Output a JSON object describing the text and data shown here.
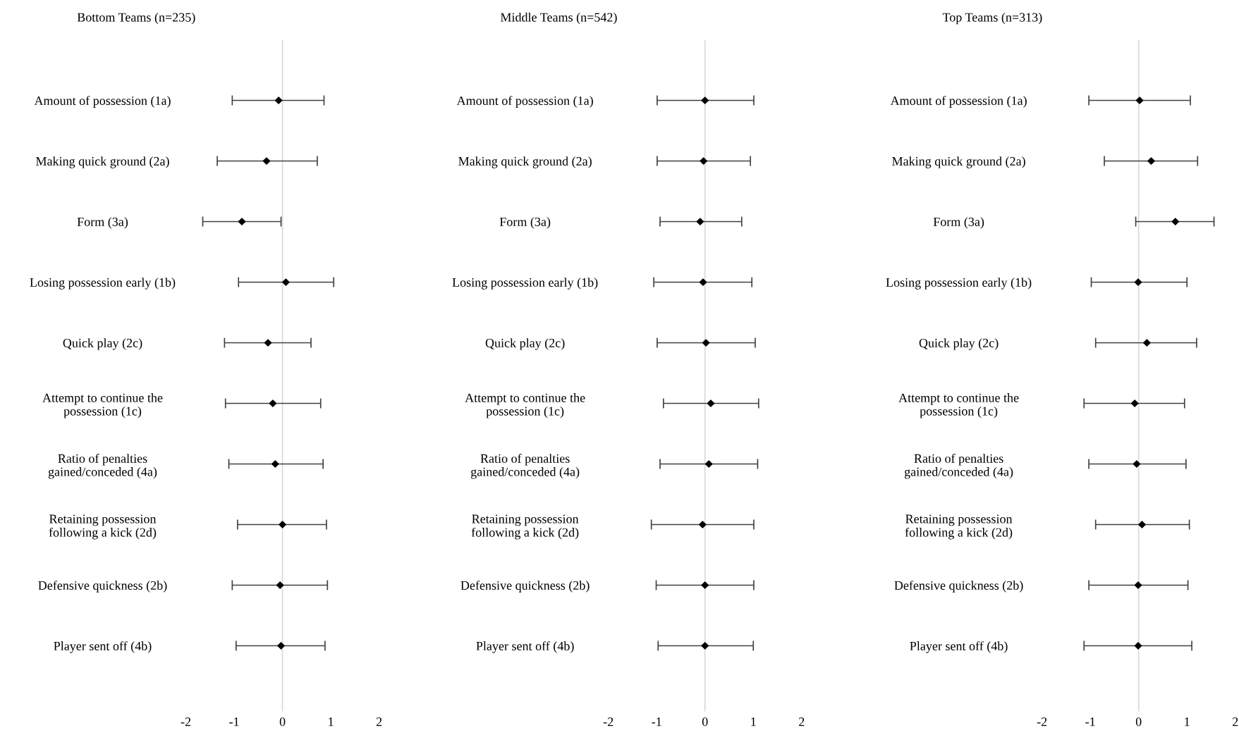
{
  "chart_data": [
    {
      "type": "scatter",
      "title": "Bottom Teams (n=235)",
      "orientation": "horizontal",
      "marker": "diamond",
      "categories": [
        "Amount of possession (1a)",
        "Making quick ground (2a)",
        "Form (3a)",
        "Losing possession early (1b)",
        "Quick play (2c)",
        "Attempt to continue the\npossession (1c)",
        "Ratio of penalties\ngained/conceded (4a)",
        "Retaining possession\nfollowing a kick (2d)",
        "Defensive quickness (2b)",
        "Player sent off (4b)"
      ],
      "series": [
        {
          "color": "#000000",
          "values": [
            -0.08,
            -0.33,
            -0.84,
            0.07,
            -0.3,
            -0.2,
            -0.15,
            0.0,
            -0.05,
            -0.03
          ],
          "errors": [
            [
              -1.04,
              0.86
            ],
            [
              -1.35,
              0.72
            ],
            [
              -1.65,
              -0.03
            ],
            [
              -0.91,
              1.06
            ],
            [
              -1.2,
              0.59
            ],
            [
              -1.18,
              0.79
            ],
            [
              -1.11,
              0.84
            ],
            [
              -0.93,
              0.91
            ],
            [
              -1.04,
              0.93
            ],
            [
              -0.96,
              0.88
            ]
          ]
        }
      ],
      "xlim": [
        -2,
        2
      ],
      "xticks": [
        -2,
        -1,
        0,
        1,
        2
      ],
      "ref_lines": [
        {
          "axis": "x",
          "value": 0,
          "color": "#d9d9d9"
        }
      ],
      "grid": false,
      "legend": false
    },
    {
      "type": "scatter",
      "title": "Middle Teams (n=542)",
      "orientation": "horizontal",
      "marker": "diamond",
      "categories": [
        "Amount of possession (1a)",
        "Making quick ground (2a)",
        "Form (3a)",
        "Losing possession early (1b)",
        "Quick play (2c)",
        "Attempt to continue the\npossession (1c)",
        "Ratio of penalties\ngained/conceded (4a)",
        "Retaining possession\nfollowing a kick (2d)",
        "Defensive quickness (2b)",
        "Player sent off (4b)"
      ],
      "series": [
        {
          "color": "#000000",
          "values": [
            0.0,
            -0.03,
            -0.1,
            -0.04,
            0.02,
            0.12,
            0.08,
            -0.05,
            0.0,
            0.0
          ],
          "errors": [
            [
              -0.99,
              1.01
            ],
            [
              -0.99,
              0.94
            ],
            [
              -0.93,
              0.76
            ],
            [
              -1.06,
              0.97
            ],
            [
              -0.99,
              1.04
            ],
            [
              -0.86,
              1.11
            ],
            [
              -0.93,
              1.09
            ],
            [
              -1.11,
              1.01
            ],
            [
              -1.01,
              1.01
            ],
            [
              -0.97,
              1.0
            ]
          ]
        }
      ],
      "xlim": [
        -2,
        2
      ],
      "xticks": [
        -2,
        -1,
        0,
        1,
        2
      ],
      "ref_lines": [
        {
          "axis": "x",
          "value": 0,
          "color": "#d9d9d9"
        }
      ],
      "grid": false,
      "legend": false
    },
    {
      "type": "scatter",
      "title": "Top Teams (n=313)",
      "orientation": "horizontal",
      "marker": "diamond",
      "categories": [
        "Amount of possession (1a)",
        "Making quick ground (2a)",
        "Form (3a)",
        "Losing possession early (1b)",
        "Quick play (2c)",
        "Attempt to continue the\npossession (1c)",
        "Ratio of penalties\ngained/conceded (4a)",
        "Retaining possession\nfollowing a kick (2d)",
        "Defensive quickness (2b)",
        "Player sent off (4b)"
      ],
      "series": [
        {
          "color": "#000000",
          "values": [
            0.02,
            0.26,
            0.76,
            -0.01,
            0.17,
            -0.08,
            -0.04,
            0.07,
            -0.01,
            -0.01
          ],
          "errors": [
            [
              -1.03,
              1.07
            ],
            [
              -0.71,
              1.22
            ],
            [
              -0.06,
              1.56
            ],
            [
              -0.98,
              1.0
            ],
            [
              -0.89,
              1.2
            ],
            [
              -1.13,
              0.95
            ],
            [
              -1.03,
              0.98
            ],
            [
              -0.89,
              1.05
            ],
            [
              -1.03,
              1.02
            ],
            [
              -1.13,
              1.1
            ]
          ]
        }
      ],
      "xlim": [
        -2,
        2
      ],
      "xticks": [
        -2,
        -1,
        0,
        1,
        2
      ],
      "ref_lines": [
        {
          "axis": "x",
          "value": 0,
          "color": "#d9d9d9"
        }
      ],
      "grid": false,
      "legend": false
    }
  ]
}
